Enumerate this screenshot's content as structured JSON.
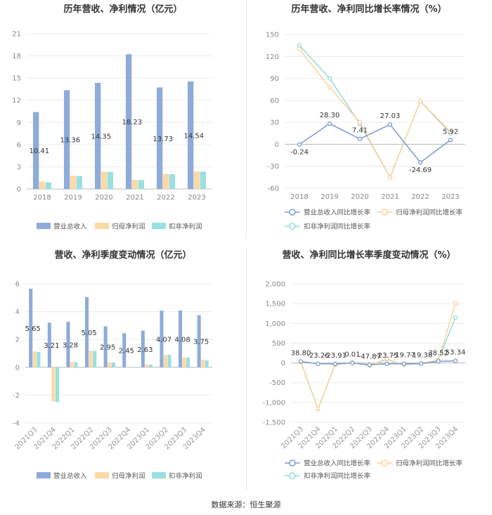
{
  "colors": {
    "revenue": "#8eabd9",
    "net_profit": "#fcd9a5",
    "deducted_profit": "#99e0e0",
    "rev_growth_line": "#7b9ccf",
    "np_growth_line": "#fcd19a",
    "dp_growth_line": "#8fdcdc"
  },
  "source_text": "数据来源：恒生聚源",
  "chart_data": [
    {
      "type": "bar",
      "title": "历年营收、净利情况（亿元）",
      "categories": [
        "2018",
        "2019",
        "2020",
        "2021",
        "2022",
        "2023"
      ],
      "series": [
        {
          "name": "营业总收入",
          "values": [
            10.41,
            13.36,
            14.35,
            18.23,
            13.73,
            14.54
          ]
        },
        {
          "name": "归母净利润",
          "values": [
            1.0,
            1.8,
            2.35,
            1.25,
            2.05,
            2.4
          ]
        },
        {
          "name": "扣非净利润",
          "values": [
            0.9,
            1.75,
            2.3,
            1.2,
            2.0,
            2.35
          ]
        }
      ],
      "data_labels": [
        "10.41",
        "13.36",
        "14.35",
        "18.23",
        "13.73",
        "14.54"
      ],
      "yticks": [
        "0",
        "3",
        "6",
        "9",
        "12",
        "15",
        "18",
        "21"
      ],
      "ylim": [
        0,
        21
      ],
      "grid": true,
      "legend": "bottom"
    },
    {
      "type": "line",
      "title": "历年营收、净利同比增长率情况（%）",
      "categories": [
        "2018",
        "2019",
        "2020",
        "2021",
        "2022",
        "2023"
      ],
      "series": [
        {
          "name": "营业总收入同比增长率",
          "values": [
            -0.24,
            28.3,
            7.41,
            27.03,
            -24.69,
            5.92
          ]
        },
        {
          "name": "归母净利润同比增长率",
          "values": [
            130,
            78,
            30,
            -45,
            59,
            17
          ]
        },
        {
          "name": "扣非净利润同比增长率",
          "values": [
            135,
            90,
            28,
            -45,
            59,
            15
          ]
        }
      ],
      "data_labels": [
        "-0.24",
        "28.30",
        "7.41",
        "27.03",
        "-24.69",
        "5.92"
      ],
      "yticks": [
        "-60",
        "-30",
        "0",
        "30",
        "60",
        "90",
        "120",
        "150"
      ],
      "ylim": [
        -60,
        150
      ],
      "grid": true,
      "legend": "bottom"
    },
    {
      "type": "bar",
      "title": "营收、净利季度变动情况（亿元）",
      "categories": [
        "2021Q3",
        "2021Q4",
        "2022Q1",
        "2022Q2",
        "2022Q3",
        "2022Q4",
        "2023Q1",
        "2023Q2",
        "2023Q3",
        "2023Q4"
      ],
      "series": [
        {
          "name": "营业总收入",
          "values": [
            5.65,
            3.21,
            3.28,
            5.05,
            2.95,
            2.45,
            2.63,
            4.07,
            4.08,
            3.75
          ]
        },
        {
          "name": "归母净利润",
          "values": [
            1.15,
            -2.45,
            0.38,
            1.2,
            0.35,
            0.05,
            0.2,
            0.9,
            0.7,
            0.55
          ]
        },
        {
          "name": "扣非净利润",
          "values": [
            1.1,
            -2.5,
            0.38,
            1.18,
            0.35,
            0.03,
            0.2,
            0.9,
            0.7,
            0.5
          ]
        }
      ],
      "data_labels": [
        "5.65",
        "3.21",
        "3.28",
        "5.05",
        "2.95",
        "2.45",
        "2.63",
        "4.07",
        "4.08",
        "3.75"
      ],
      "yticks": [
        "-4",
        "-2",
        "0",
        "2",
        "4",
        "6"
      ],
      "ylim": [
        -4,
        6
      ],
      "grid": true,
      "legend": "bottom"
    },
    {
      "type": "line",
      "title": "营收、净利同比增长率季度变动情况（%）",
      "categories": [
        "2021Q3",
        "2021Q4",
        "2022Q1",
        "2022Q2",
        "2022Q3",
        "2022Q4",
        "2023Q1",
        "2023Q2",
        "2023Q3",
        "2023Q4"
      ],
      "series": [
        {
          "name": "营业总收入同比增长率",
          "values": [
            38.8,
            -23.26,
            -23.91,
            0.01,
            -47.87,
            -23.75,
            -19.77,
            -19.38,
            38.52,
            53.34
          ]
        },
        {
          "name": "归母净利润同比增长率",
          "values": [
            20,
            -1150,
            -40,
            10,
            -60,
            100,
            -50,
            -10,
            60,
            1500
          ]
        },
        {
          "name": "扣非净利润同比增长率",
          "values": [
            25,
            -1160,
            -45,
            5,
            -65,
            90,
            -55,
            -15,
            70,
            1150
          ]
        }
      ],
      "data_labels": [
        "38.80",
        "-23.26",
        "-23.91",
        "0.01",
        "-47.87",
        "-23.75",
        "-19.77",
        "-19.38",
        "38.52",
        "53.34"
      ],
      "yticks": [
        "-1,500",
        "-1,000",
        "-500",
        "0",
        "500",
        "1,000",
        "1,500",
        "2,000"
      ],
      "ylim": [
        -1500,
        2000
      ],
      "grid": true,
      "legend": "bottom"
    }
  ]
}
